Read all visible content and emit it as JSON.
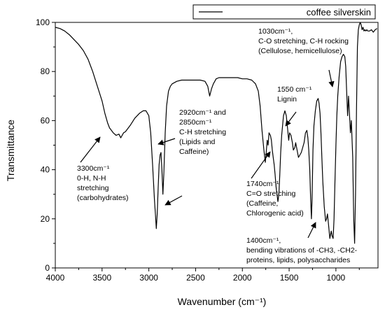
{
  "chart_data": {
    "type": "line",
    "xlabel": "Wavenumber (cm⁻¹)",
    "ylabel": "Transmittance",
    "xlim": [
      4000,
      550
    ],
    "ylim": [
      0,
      100
    ],
    "x_reversed": true,
    "grid": false,
    "legend_position": "top-right",
    "x_ticks": [
      4000,
      3500,
      3000,
      2500,
      2000,
      1500,
      1000
    ],
    "y_ticks": [
      0,
      20,
      40,
      60,
      80,
      100
    ],
    "series": [
      {
        "name": "coffee silverskin",
        "color": "#000000",
        "points": [
          [
            4000,
            98
          ],
          [
            3950,
            97.5
          ],
          [
            3900,
            96.5
          ],
          [
            3850,
            95
          ],
          [
            3800,
            93
          ],
          [
            3750,
            91
          ],
          [
            3700,
            88.5
          ],
          [
            3650,
            85
          ],
          [
            3600,
            80
          ],
          [
            3550,
            74
          ],
          [
            3500,
            68
          ],
          [
            3470,
            63
          ],
          [
            3440,
            59
          ],
          [
            3420,
            57
          ],
          [
            3400,
            56
          ],
          [
            3380,
            55
          ],
          [
            3350,
            54
          ],
          [
            3320,
            54.5
          ],
          [
            3300,
            53
          ],
          [
            3270,
            55
          ],
          [
            3250,
            55.5
          ],
          [
            3200,
            58
          ],
          [
            3150,
            61
          ],
          [
            3100,
            63
          ],
          [
            3060,
            64
          ],
          [
            3030,
            64
          ],
          [
            3000,
            62
          ],
          [
            2980,
            55
          ],
          [
            2960,
            42
          ],
          [
            2940,
            28
          ],
          [
            2930,
            22
          ],
          [
            2920,
            16
          ],
          [
            2910,
            22
          ],
          [
            2900,
            33
          ],
          [
            2890,
            42
          ],
          [
            2880,
            46
          ],
          [
            2870,
            47
          ],
          [
            2860,
            40
          ],
          [
            2850,
            30
          ],
          [
            2840,
            38
          ],
          [
            2825,
            55
          ],
          [
            2810,
            66
          ],
          [
            2790,
            72
          ],
          [
            2770,
            74
          ],
          [
            2750,
            75
          ],
          [
            2700,
            76
          ],
          [
            2650,
            76.5
          ],
          [
            2600,
            76.5
          ],
          [
            2550,
            76.5
          ],
          [
            2500,
            76.5
          ],
          [
            2450,
            76.5
          ],
          [
            2400,
            76
          ],
          [
            2370,
            74
          ],
          [
            2350,
            70
          ],
          [
            2330,
            73
          ],
          [
            2310,
            75
          ],
          [
            2280,
            77
          ],
          [
            2250,
            77.5
          ],
          [
            2200,
            77.5
          ],
          [
            2150,
            77.5
          ],
          [
            2100,
            77.5
          ],
          [
            2050,
            77.5
          ],
          [
            2000,
            77
          ],
          [
            1950,
            77
          ],
          [
            1900,
            76.5
          ],
          [
            1860,
            75
          ],
          [
            1830,
            72
          ],
          [
            1810,
            66
          ],
          [
            1790,
            56
          ],
          [
            1770,
            48
          ],
          [
            1755,
            43
          ],
          [
            1745,
            47
          ],
          [
            1735,
            52
          ],
          [
            1725,
            50
          ],
          [
            1715,
            55
          ],
          [
            1700,
            54
          ],
          [
            1690,
            52
          ],
          [
            1680,
            48
          ],
          [
            1670,
            45
          ],
          [
            1660,
            42
          ],
          [
            1650,
            38
          ],
          [
            1640,
            33
          ],
          [
            1630,
            30
          ],
          [
            1620,
            27
          ],
          [
            1610,
            30
          ],
          [
            1600,
            38
          ],
          [
            1590,
            47
          ],
          [
            1580,
            54
          ],
          [
            1570,
            58
          ],
          [
            1560,
            62
          ],
          [
            1545,
            64
          ],
          [
            1530,
            62
          ],
          [
            1515,
            56
          ],
          [
            1505,
            52
          ],
          [
            1495,
            55
          ],
          [
            1480,
            54
          ],
          [
            1465,
            51
          ],
          [
            1455,
            48
          ],
          [
            1440,
            49
          ],
          [
            1430,
            51
          ],
          [
            1415,
            48
          ],
          [
            1400,
            45
          ],
          [
            1385,
            46
          ],
          [
            1370,
            47
          ],
          [
            1355,
            49
          ],
          [
            1340,
            51
          ],
          [
            1325,
            55
          ],
          [
            1310,
            56
          ],
          [
            1300,
            53
          ],
          [
            1290,
            48
          ],
          [
            1280,
            40
          ],
          [
            1270,
            28
          ],
          [
            1262,
            20
          ],
          [
            1255,
            28
          ],
          [
            1245,
            48
          ],
          [
            1235,
            58
          ],
          [
            1220,
            64
          ],
          [
            1205,
            68
          ],
          [
            1190,
            69
          ],
          [
            1180,
            67
          ],
          [
            1170,
            63
          ],
          [
            1160,
            55
          ],
          [
            1150,
            45
          ],
          [
            1140,
            35
          ],
          [
            1125,
            25
          ],
          [
            1110,
            19
          ],
          [
            1100,
            20
          ],
          [
            1090,
            22
          ],
          [
            1080,
            18
          ],
          [
            1065,
            12
          ],
          [
            1050,
            15
          ],
          [
            1040,
            13
          ],
          [
            1030,
            12
          ],
          [
            1020,
            20
          ],
          [
            1010,
            35
          ],
          [
            1000,
            50
          ],
          [
            990,
            62
          ],
          [
            980,
            70
          ],
          [
            965,
            78
          ],
          [
            950,
            84
          ],
          [
            935,
            86
          ],
          [
            920,
            87
          ],
          [
            905,
            86
          ],
          [
            895,
            82
          ],
          [
            885,
            72
          ],
          [
            875,
            62
          ],
          [
            865,
            70
          ],
          [
            855,
            63
          ],
          [
            845,
            55
          ],
          [
            835,
            60
          ],
          [
            820,
            45
          ],
          [
            810,
            20
          ],
          [
            800,
            10
          ],
          [
            790,
            30
          ],
          [
            780,
            65
          ],
          [
            770,
            90
          ],
          [
            760,
            97
          ],
          [
            750,
            99
          ],
          [
            740,
            100
          ],
          [
            730,
            99
          ],
          [
            720,
            97
          ],
          [
            710,
            98
          ],
          [
            700,
            96.5
          ],
          [
            690,
            97
          ],
          [
            680,
            96.5
          ],
          [
            670,
            97
          ],
          [
            660,
            96.5
          ],
          [
            640,
            96.5
          ],
          [
            620,
            97
          ],
          [
            600,
            96
          ],
          [
            580,
            97
          ],
          [
            560,
            97.5
          ]
        ]
      }
    ],
    "annotations": [
      {
        "lines": [
          "3300cm⁻¹",
          "0-H, N-H",
          "stretching",
          "(carbohydrates)"
        ]
      },
      {
        "lines": [
          "2920cm⁻¹ and",
          "2850cm⁻¹",
          "C-H stretching",
          "(Lipids and",
          "Caffeine)"
        ]
      },
      {
        "lines": [
          "1740cm⁻¹",
          "C=O stretching",
          "(Caffeine,",
          "Chlorogenic acid)"
        ]
      },
      {
        "lines": [
          "1550 cm⁻¹",
          "Lignin"
        ]
      },
      {
        "lines": [
          "1030cm⁻¹,",
          "C-O stretching, C-H rocking",
          "(Cellulose, hemicellulose)"
        ]
      },
      {
        "lines": [
          "1400cm⁻¹,",
          "bending vibrations of -CH3, -CH2-",
          "proteins, lipids, polysaccharides"
        ]
      }
    ]
  }
}
